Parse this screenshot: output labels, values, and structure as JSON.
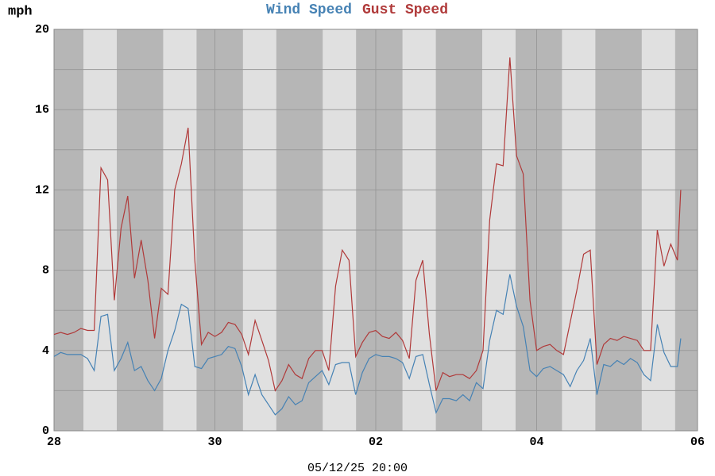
{
  "chart_data": {
    "type": "line",
    "y_label": "mph",
    "x_label": "05/12/25 20:00",
    "xlim": [
      0,
      192
    ],
    "xticks": [
      {
        "value": 0,
        "label": "28"
      },
      {
        "value": 48,
        "label": "30"
      },
      {
        "value": 96,
        "label": "02"
      },
      {
        "value": 144,
        "label": "04"
      },
      {
        "value": 192,
        "label": "06"
      }
    ],
    "ylim": [
      0,
      20
    ],
    "yticks": [
      0,
      4,
      8,
      12,
      16,
      20
    ],
    "grid": true,
    "x": [
      0,
      2,
      4,
      6,
      8,
      10,
      12,
      14,
      16,
      18,
      20,
      22,
      24,
      26,
      28,
      30,
      32,
      34,
      36,
      38,
      40,
      42,
      44,
      46,
      48,
      50,
      52,
      54,
      56,
      58,
      60,
      62,
      64,
      66,
      68,
      70,
      72,
      74,
      76,
      78,
      80,
      82,
      84,
      86,
      88,
      90,
      92,
      94,
      96,
      98,
      100,
      102,
      104,
      106,
      108,
      110,
      112,
      114,
      116,
      118,
      120,
      122,
      124,
      126,
      128,
      130,
      132,
      134,
      136,
      138,
      140,
      142,
      144,
      146,
      148,
      150,
      152,
      154,
      156,
      158,
      160,
      162,
      164,
      166,
      168,
      170,
      172,
      174,
      176,
      178,
      180,
      182,
      184,
      186,
      187
    ],
    "series": [
      {
        "name": "Wind Speed",
        "color": "#4682b4",
        "values": [
          3.7,
          3.9,
          3.8,
          3.8,
          3.8,
          3.6,
          3.0,
          5.7,
          5.8,
          3.0,
          3.6,
          4.4,
          3.0,
          3.2,
          2.5,
          2.0,
          2.6,
          4.0,
          5.0,
          6.3,
          6.1,
          3.2,
          3.1,
          3.6,
          3.7,
          3.8,
          4.2,
          4.1,
          3.2,
          1.8,
          2.8,
          1.8,
          1.3,
          0.8,
          1.1,
          1.7,
          1.3,
          1.5,
          2.4,
          2.7,
          3.0,
          2.3,
          3.3,
          3.4,
          3.4,
          1.8,
          2.9,
          3.6,
          3.8,
          3.7,
          3.7,
          3.6,
          3.4,
          2.6,
          3.7,
          3.8,
          2.3,
          0.9,
          1.6,
          1.6,
          1.5,
          1.8,
          1.5,
          2.4,
          2.1,
          4.5,
          6.0,
          5.8,
          7.8,
          6.2,
          5.2,
          3.0,
          2.7,
          3.1,
          3.2,
          3.0,
          2.8,
          2.2,
          3.0,
          3.5,
          4.6,
          1.8,
          3.3,
          3.2,
          3.5,
          3.3,
          3.6,
          3.4,
          2.8,
          2.5,
          5.3,
          3.9,
          3.2,
          3.2,
          4.6
        ]
      },
      {
        "name": "Gust Speed",
        "color": "#b03a3a",
        "values": [
          4.8,
          4.9,
          4.8,
          4.9,
          5.1,
          5.0,
          5.0,
          13.1,
          12.5,
          6.5,
          10.1,
          11.7,
          7.6,
          9.5,
          7.5,
          4.6,
          7.1,
          6.8,
          12.0,
          13.3,
          15.1,
          8.5,
          4.3,
          4.9,
          4.7,
          4.9,
          5.4,
          5.3,
          4.8,
          3.8,
          5.5,
          4.5,
          3.5,
          2.0,
          2.5,
          3.3,
          2.8,
          2.6,
          3.6,
          4.0,
          4.0,
          3.0,
          7.2,
          9.0,
          8.5,
          3.7,
          4.4,
          4.9,
          5.0,
          4.7,
          4.6,
          4.9,
          4.5,
          3.6,
          7.5,
          8.5,
          4.8,
          2.0,
          2.9,
          2.7,
          2.8,
          2.8,
          2.6,
          3.0,
          4.0,
          10.5,
          13.3,
          13.2,
          18.6,
          13.7,
          12.8,
          6.5,
          4.0,
          4.2,
          4.3,
          4.0,
          3.8,
          5.4,
          7.0,
          8.8,
          9.0,
          3.3,
          4.3,
          4.6,
          4.5,
          4.7,
          4.6,
          4.5,
          4.0,
          4.0,
          10.0,
          8.2,
          9.3,
          8.5,
          12.0
        ]
      }
    ]
  }
}
